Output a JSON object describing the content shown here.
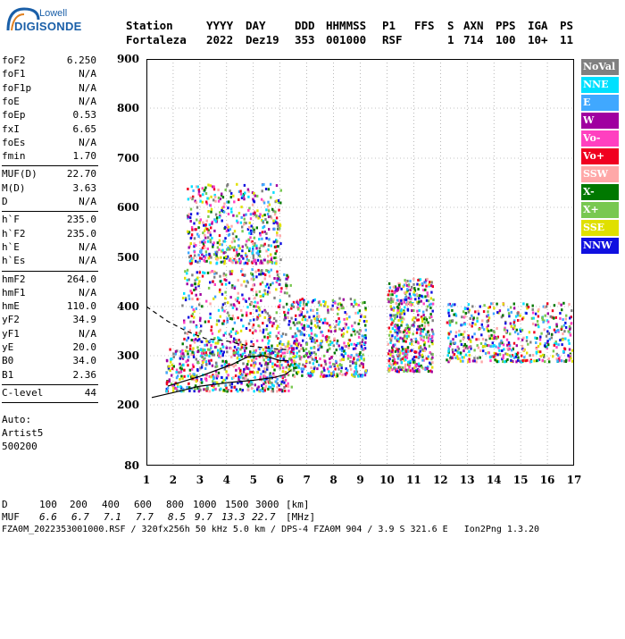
{
  "logo": {
    "line1": "Lowell",
    "line2": "DIGISONDE"
  },
  "header": {
    "labels": [
      "Station",
      "YYYY",
      "DAY",
      "DDD",
      "HHMMSS",
      "P1",
      "FFS",
      "S",
      "AXN",
      "PPS",
      "IGA",
      "PS"
    ],
    "values": [
      "Fortaleza",
      "2022",
      "Dez19",
      "353",
      "001000",
      "RSF",
      "1",
      "714",
      "100",
      "10+",
      "11"
    ]
  },
  "side_params": {
    "group1": [
      {
        "k": "foF2",
        "v": "6.250"
      },
      {
        "k": "foF1",
        "v": "N/A"
      },
      {
        "k": "foF1p",
        "v": "N/A"
      },
      {
        "k": "foE",
        "v": "N/A"
      },
      {
        "k": "foEp",
        "v": "0.53"
      },
      {
        "k": "fxI",
        "v": "6.65"
      },
      {
        "k": "foEs",
        "v": "N/A"
      },
      {
        "k": "fmin",
        "v": "1.70"
      }
    ],
    "group2": [
      {
        "k": "MUF(D)",
        "v": "22.70"
      },
      {
        "k": "M(D)",
        "v": "3.63"
      },
      {
        "k": "D",
        "v": "N/A"
      }
    ],
    "group3": [
      {
        "k": "h`F",
        "v": "235.0"
      },
      {
        "k": "h`F2",
        "v": "235.0"
      },
      {
        "k": "h`E",
        "v": "N/A"
      },
      {
        "k": "h`Es",
        "v": "N/A"
      }
    ],
    "group4": [
      {
        "k": "hmF2",
        "v": "264.0"
      },
      {
        "k": "hmF1",
        "v": "N/A"
      },
      {
        "k": "hmE",
        "v": "110.0"
      },
      {
        "k": "yF2",
        "v": "34.9"
      },
      {
        "k": "yF1",
        "v": "N/A"
      },
      {
        "k": "yE",
        "v": "20.0"
      },
      {
        "k": "B0",
        "v": "34.0"
      },
      {
        "k": "B1",
        "v": "2.36"
      }
    ],
    "clevel": {
      "k": "C-level",
      "v": "44"
    },
    "auto": [
      "Auto:",
      "Artist5",
      "500200"
    ]
  },
  "legend": [
    {
      "label": "NoVal",
      "color": "#808080"
    },
    {
      "label": "NNE",
      "color": "#00e0ff"
    },
    {
      "label": "E",
      "color": "#40a8ff"
    },
    {
      "label": "W",
      "color": "#a000a0"
    },
    {
      "label": "Vo-",
      "color": "#ff40c0"
    },
    {
      "label": "Vo+",
      "color": "#f00020"
    },
    {
      "label": "SSW",
      "color": "#ffa8a8"
    },
    {
      "label": "X-",
      "color": "#007800"
    },
    {
      "label": "X+",
      "color": "#78c850"
    },
    {
      "label": "SSE",
      "color": "#e0e000"
    },
    {
      "label": "NNW",
      "color": "#1010e0"
    }
  ],
  "footer": {
    "d_label": "D",
    "d_values": [
      "100",
      "200",
      "400",
      "600",
      "800",
      "1000",
      "1500",
      "3000",
      "[km]"
    ],
    "muf_label": "MUF",
    "muf_values": [
      "6.6",
      "6.7",
      "7.1",
      "7.7",
      "8.5",
      "9.7",
      "13.3",
      "22.7",
      "[MHz]"
    ],
    "info": "FZA0M_2022353001000.RSF / 320fx256h 50 kHz 5.0 km / DPS-4 FZA0M 904 / 3.9 S 321.6 E   Ion2Png 1.3.20"
  },
  "chart_data": {
    "type": "scatter",
    "title": "",
    "xlabel": "",
    "ylabel": "",
    "xlim": [
      1,
      17
    ],
    "ylim": [
      80,
      900
    ],
    "x_ticks": [
      1,
      2,
      3,
      4,
      5,
      6,
      7,
      8,
      9,
      10,
      11,
      12,
      13,
      14,
      15,
      16,
      17
    ],
    "y_ticks": [
      80,
      200,
      300,
      400,
      500,
      600,
      700,
      800,
      900
    ],
    "y_scale": "virtual-height (non-linear)",
    "grid": "dotted",
    "echo_clusters": [
      {
        "x": [
          1.7,
          6.4
        ],
        "y": [
          230,
          320
        ],
        "note": "F-layer trace, dense"
      },
      {
        "x": [
          2.3,
          6.4
        ],
        "y": [
          300,
          480
        ],
        "note": "F-layer spread"
      },
      {
        "x": [
          2.5,
          6.0
        ],
        "y": [
          490,
          650
        ],
        "note": "second-hop trace"
      },
      {
        "x": [
          6.4,
          9.2
        ],
        "y": [
          260,
          420
        ],
        "note": "spread F"
      },
      {
        "x": [
          10.0,
          11.7
        ],
        "y": [
          270,
          460
        ],
        "note": "spread F"
      },
      {
        "x": [
          12.2,
          16.9
        ],
        "y": [
          290,
          410
        ],
        "note": "spread F"
      }
    ],
    "curves": [
      {
        "name": "",
        "style": "solid",
        "x": [
          1.2,
          2.0,
          3.0,
          4.0,
          5.0,
          5.8,
          6.2,
          6.4
        ],
        "y": [
          215,
          225,
          238,
          245,
          250,
          256,
          262,
          270
        ]
      },
      {
        "name": "",
        "style": "solid",
        "x": [
          1.8,
          2.4,
          3.0,
          3.6,
          4.2,
          4.8,
          5.4,
          6.0,
          6.3
        ],
        "y": [
          238,
          248,
          258,
          270,
          282,
          298,
          300,
          290,
          290
        ]
      },
      {
        "name": "",
        "style": "dashed",
        "x": [
          1.0,
          1.8,
          2.5,
          3.2,
          4.0,
          4.8,
          5.6,
          6.3
        ],
        "y": [
          400,
          370,
          350,
          335,
          330,
          320,
          315,
          312
        ]
      }
    ]
  }
}
